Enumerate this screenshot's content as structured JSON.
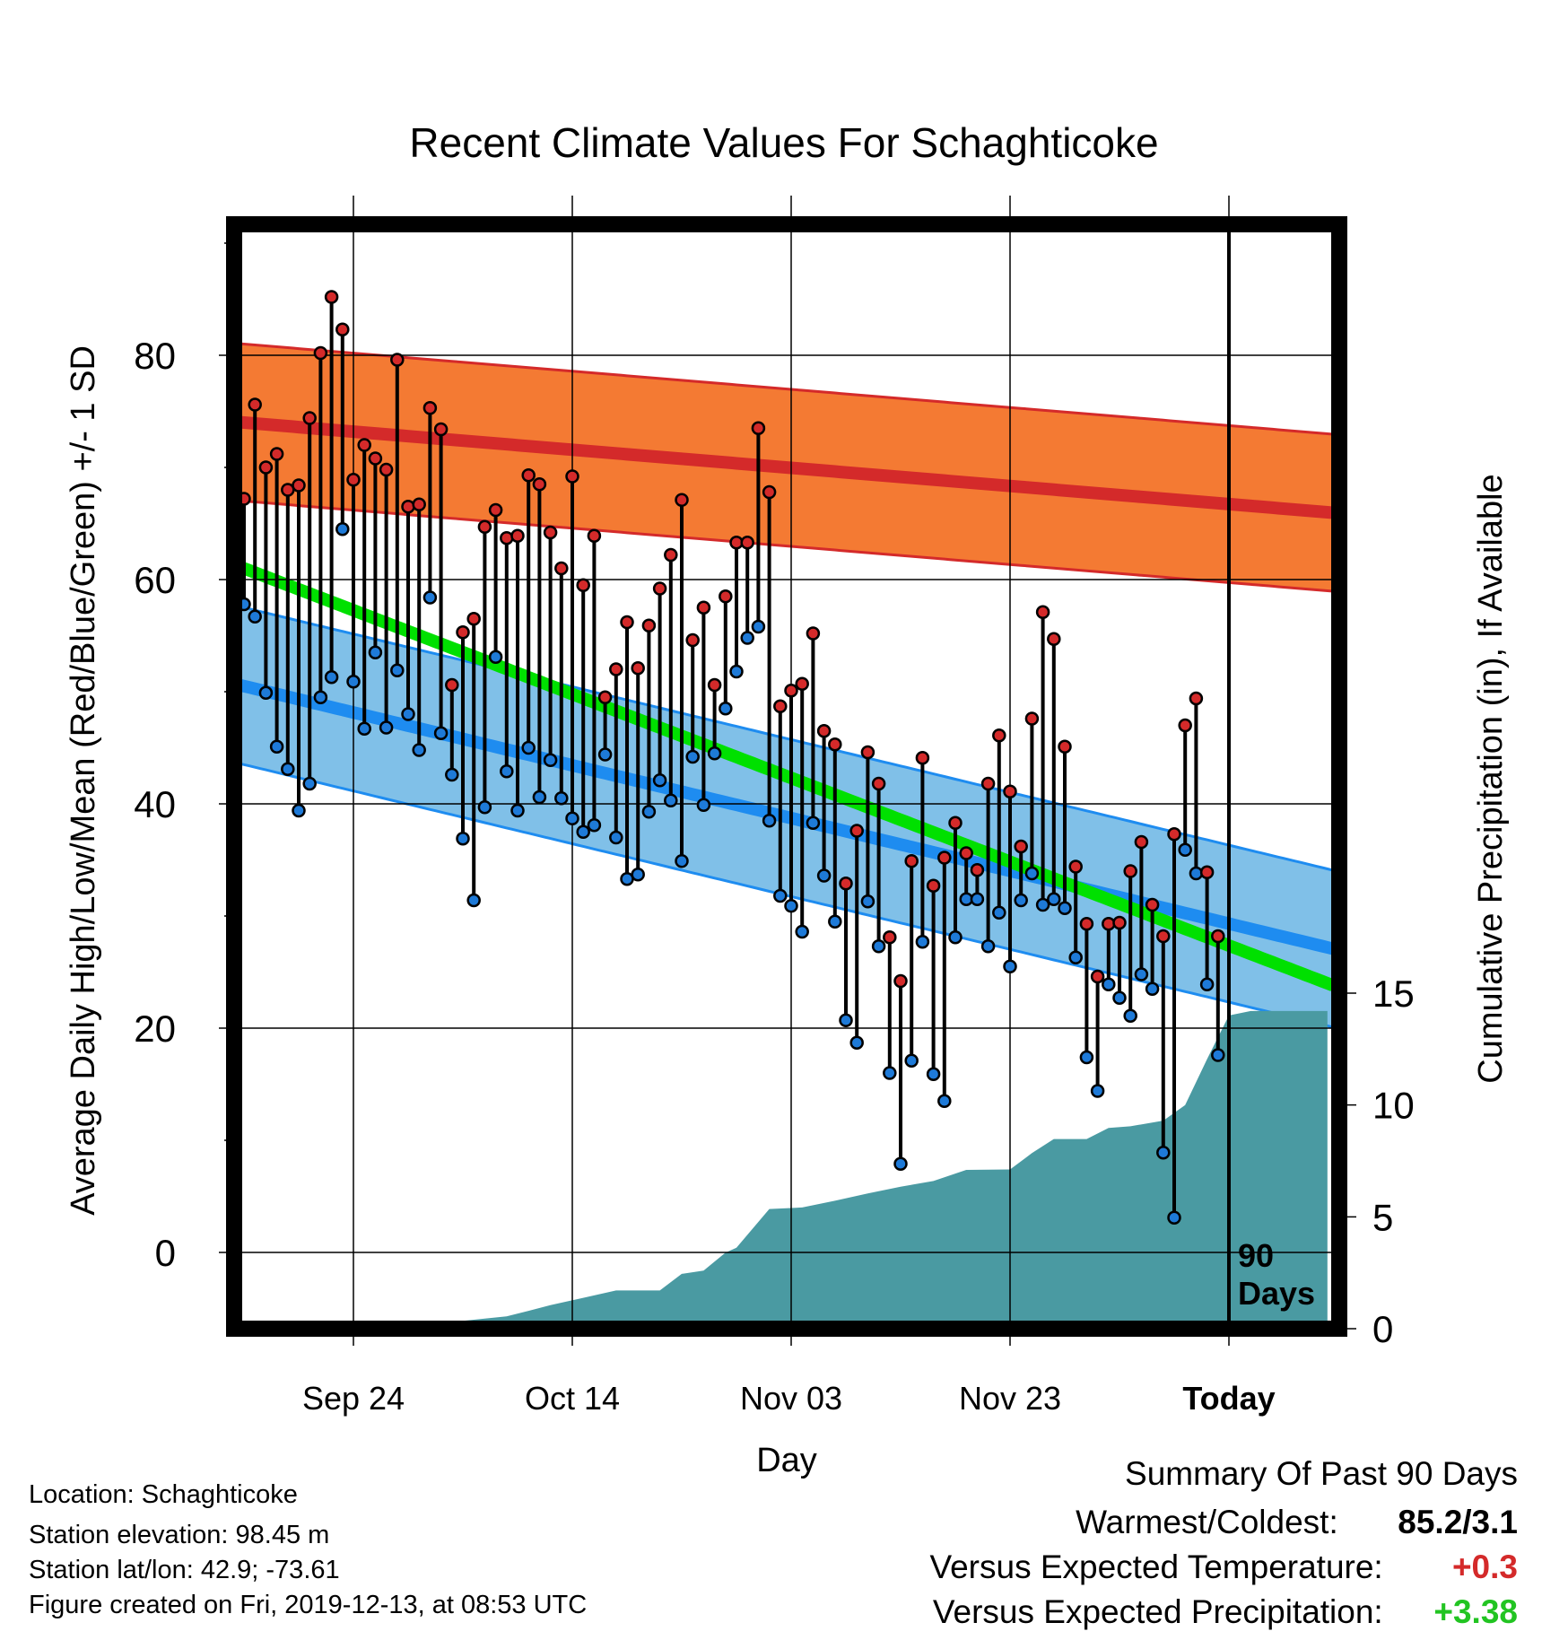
{
  "chart_data": {
    "type": "line",
    "title": "Recent Climate Values For Schaghticoke",
    "xlabel": "Day",
    "ylabel": "Average Daily High/Low/Mean (Red/Blue/Green) +/- 1 SD",
    "y2label": "Cumulative Precipitation (in), If Available",
    "x_ticks": [
      "Sep 24",
      "Oct 14",
      "Nov 03",
      "Nov 23",
      "Today"
    ],
    "ylim": [
      -6,
      91
    ],
    "y_ticks": [
      0,
      20,
      40,
      60,
      80
    ],
    "y2lim": [
      0,
      15
    ],
    "y2_ticks": [
      0,
      5,
      10,
      15
    ],
    "today_marker_label": "90 Days",
    "normal_high": [
      74,
      66
    ],
    "normal_high_sd": 7,
    "normal_low": [
      50.5,
      27.2
    ],
    "normal_low_sd": 7,
    "normal_mean": [
      61,
      24
    ],
    "observed_high": [
      67.2,
      75.6,
      70,
      71.2,
      68,
      68.4,
      74.4,
      80.2,
      85.2,
      82.3,
      68.9,
      72,
      70.8,
      69.8,
      79.6,
      66.5,
      66.7,
      75.3,
      73.4,
      50.6,
      55.3,
      56.5,
      64.7,
      66.2,
      63.7,
      63.9,
      69.3,
      68.5,
      64.2,
      61,
      69.2,
      59.5,
      63.9,
      49.5,
      52,
      56.2,
      52.1,
      55.9,
      59.2,
      62.2,
      67.1,
      54.6,
      57.5,
      50.6,
      58.5,
      63.3,
      63.3,
      73.5,
      67.8,
      48.7,
      50.1,
      50.7,
      55.2,
      46.5,
      45.3,
      32.9,
      37.6,
      44.6,
      41.8,
      28.1,
      24.2,
      34.9,
      44.1,
      32.7,
      35.2,
      38.3,
      35.6,
      34.1,
      41.8,
      46.1,
      41.1,
      36.2,
      47.6,
      57.1,
      54.7,
      45.1,
      34.4,
      29.3,
      24.6,
      29.3,
      29.4,
      34,
      36.6,
      31,
      28.2,
      37.3,
      47,
      49.4,
      33.9,
      28.2
    ],
    "observed_low": [
      57.8,
      56.7,
      49.9,
      45.1,
      43.1,
      39.4,
      41.8,
      49.5,
      51.3,
      64.5,
      50.9,
      46.7,
      53.5,
      46.8,
      51.9,
      48,
      44.8,
      58.4,
      46.3,
      42.6,
      36.9,
      31.4,
      39.7,
      53.1,
      42.9,
      39.4,
      45,
      40.6,
      43.9,
      40.5,
      38.7,
      37.5,
      38.1,
      44.4,
      37,
      33.3,
      33.7,
      39.3,
      42.1,
      40.3,
      34.9,
      44.2,
      39.9,
      44.5,
      48.5,
      51.8,
      54.8,
      55.8,
      38.5,
      31.8,
      30.9,
      28.6,
      38.3,
      33.6,
      29.5,
      20.7,
      18.7,
      31.3,
      27.3,
      16,
      7.9,
      17.1,
      27.7,
      15.9,
      13.5,
      28.1,
      31.5,
      31.5,
      27.3,
      30.3,
      25.5,
      31.4,
      33.8,
      31,
      31.5,
      30.7,
      26.3,
      17.4,
      14.4,
      23.9,
      22.7,
      21.1,
      24.8,
      23.5,
      8.9,
      3.1,
      35.9,
      33.8,
      23.9,
      17.6
    ],
    "cumulative_precip_steps": [
      [
        10,
        0
      ],
      [
        12,
        0.08
      ],
      [
        16,
        0.12
      ],
      [
        18,
        0.25
      ],
      [
        20,
        0.35
      ],
      [
        22,
        0.45
      ],
      [
        24,
        0.55
      ],
      [
        26,
        0.8
      ],
      [
        28,
        1.05
      ],
      [
        31,
        1.38
      ],
      [
        34,
        1.71
      ],
      [
        38,
        1.71
      ],
      [
        40,
        2.45
      ],
      [
        42,
        2.6
      ],
      [
        44,
        3.4
      ],
      [
        45,
        3.62
      ],
      [
        48,
        5.35
      ],
      [
        51,
        5.42
      ],
      [
        54,
        5.72
      ],
      [
        57,
        6.05
      ],
      [
        60,
        6.35
      ],
      [
        63,
        6.6
      ],
      [
        66,
        7.1
      ],
      [
        70,
        7.12
      ],
      [
        72,
        7.85
      ],
      [
        74,
        8.48
      ],
      [
        77,
        8.48
      ],
      [
        79,
        8.97
      ],
      [
        81,
        9.05
      ],
      [
        84,
        9.3
      ],
      [
        86,
        10.0
      ],
      [
        88,
        12.05
      ],
      [
        90,
        14.0
      ],
      [
        92,
        14.2
      ],
      [
        94,
        14.2
      ],
      [
        96,
        14.2
      ],
      [
        99,
        14.2
      ]
    ],
    "grid": true,
    "legend": "none"
  },
  "footer": {
    "location": "Location: Schaghticoke",
    "elevation": "Station elevation: 98.45 m",
    "latlon": "Station lat/lon: 42.9; -73.61",
    "created": "Figure created on Fri, 2019-12-13, at 08:53 UTC"
  },
  "summary": {
    "heading": "Summary Of Past 90 Days",
    "warm_cold_label": "Warmest/Coldest:",
    "warm_cold_value": "85.2/3.1",
    "temp_label": "Versus Expected Temperature:",
    "temp_value": "+0.3",
    "precip_label": "Versus Expected Precipitation:",
    "precip_value": "+3.38"
  },
  "colors": {
    "high_band": "#f47a33",
    "high_line": "#d42a2a",
    "low_band": "#80c0e8",
    "low_line": "#1e8cf0",
    "mean_line": "#00e000",
    "overlap_band": "#9b1b1b",
    "precip": "#4a9aa2",
    "high_dot": "#d42a2a",
    "low_dot": "#1e7ad8",
    "temp_value": "#d42a2a",
    "precip_value": "#22c422"
  }
}
